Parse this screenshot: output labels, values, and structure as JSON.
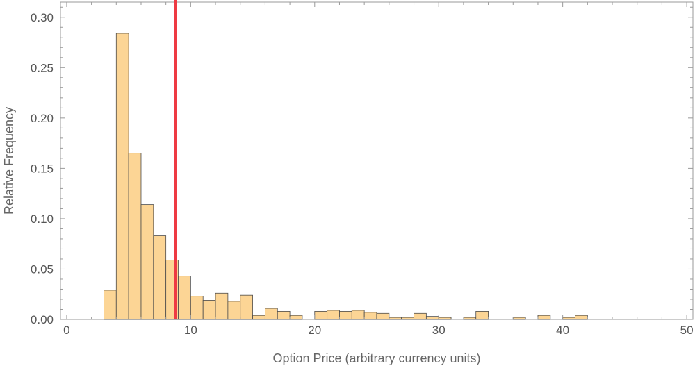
{
  "chart_data": {
    "type": "bar",
    "title": "",
    "xlabel": "Option Price (arbitrary currency units)",
    "ylabel": "Relative Frequency",
    "xlim": [
      -0.5,
      50.5
    ],
    "ylim": [
      0,
      0.315
    ],
    "xticks": [
      0,
      10,
      20,
      30,
      40,
      50
    ],
    "xtick_labels": [
      "0",
      "10",
      "20",
      "30",
      "40",
      "50"
    ],
    "yticks": [
      0,
      0.05,
      0.1,
      0.15,
      0.2,
      0.25,
      0.3
    ],
    "ytick_labels": [
      "0.00",
      "0.05",
      "0.10",
      "0.15",
      "0.20",
      "0.25",
      "0.30"
    ],
    "grid": false,
    "bin_width": 1,
    "bins": [
      {
        "x0": 3,
        "x1": 4,
        "value": 0.029
      },
      {
        "x0": 4,
        "x1": 5,
        "value": 0.284
      },
      {
        "x0": 5,
        "x1": 6,
        "value": 0.165
      },
      {
        "x0": 6,
        "x1": 7,
        "value": 0.114
      },
      {
        "x0": 7,
        "x1": 8,
        "value": 0.083
      },
      {
        "x0": 8,
        "x1": 9,
        "value": 0.059
      },
      {
        "x0": 9,
        "x1": 10,
        "value": 0.043
      },
      {
        "x0": 10,
        "x1": 11,
        "value": 0.023
      },
      {
        "x0": 11,
        "x1": 12,
        "value": 0.019
      },
      {
        "x0": 12,
        "x1": 13,
        "value": 0.026
      },
      {
        "x0": 13,
        "x1": 14,
        "value": 0.018
      },
      {
        "x0": 14,
        "x1": 15,
        "value": 0.024
      },
      {
        "x0": 15,
        "x1": 16,
        "value": 0.004
      },
      {
        "x0": 16,
        "x1": 17,
        "value": 0.011
      },
      {
        "x0": 17,
        "x1": 18,
        "value": 0.008
      },
      {
        "x0": 18,
        "x1": 19,
        "value": 0.004
      },
      {
        "x0": 20,
        "x1": 21,
        "value": 0.008
      },
      {
        "x0": 21,
        "x1": 22,
        "value": 0.009
      },
      {
        "x0": 22,
        "x1": 23,
        "value": 0.008
      },
      {
        "x0": 23,
        "x1": 24,
        "value": 0.009
      },
      {
        "x0": 24,
        "x1": 25,
        "value": 0.007
      },
      {
        "x0": 25,
        "x1": 26,
        "value": 0.006
      },
      {
        "x0": 26,
        "x1": 27,
        "value": 0.002
      },
      {
        "x0": 27,
        "x1": 28,
        "value": 0.002
      },
      {
        "x0": 28,
        "x1": 29,
        "value": 0.006
      },
      {
        "x0": 29,
        "x1": 30,
        "value": 0.003
      },
      {
        "x0": 30,
        "x1": 31,
        "value": 0.002
      },
      {
        "x0": 32,
        "x1": 33,
        "value": 0.002
      },
      {
        "x0": 33,
        "x1": 34,
        "value": 0.008
      },
      {
        "x0": 36,
        "x1": 37,
        "value": 0.002
      },
      {
        "x0": 38,
        "x1": 39,
        "value": 0.004
      },
      {
        "x0": 40,
        "x1": 41,
        "value": 0.002
      },
      {
        "x0": 41,
        "x1": 42,
        "value": 0.004
      }
    ],
    "reference_line": {
      "x": 8.8
    },
    "colors": {
      "bar_fill": "#fcd595",
      "bar_stroke": "#4a4a4a",
      "reference_line": "#ee3a43",
      "frame": "#9a9a9a",
      "tick_text": "#555555"
    }
  }
}
